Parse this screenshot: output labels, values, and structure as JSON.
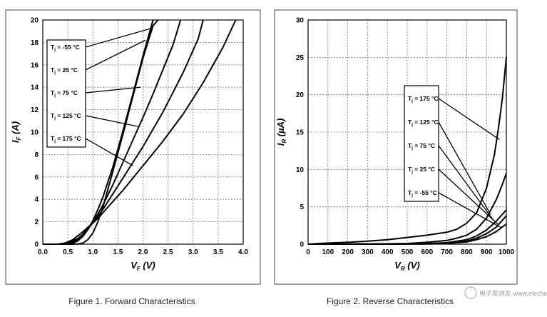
{
  "charts": [
    {
      "caption": "Figure 1. Forward Characteristics",
      "chart_data": {
        "type": "line",
        "xlabel": "V",
        "xlabel_sub": "F",
        "xlabel_unit": "(V)",
        "ylabel": "I",
        "ylabel_sub": "F",
        "ylabel_unit": "(A)",
        "xlim": [
          0,
          4
        ],
        "ylim": [
          0,
          20
        ],
        "xticks": [
          "0.0",
          "0.5",
          "1.0",
          "1.5",
          "2.0",
          "2.5",
          "3.0",
          "3.5",
          "4.0"
        ],
        "yticks": [
          "0",
          "2",
          "4",
          "6",
          "8",
          "10",
          "12",
          "14",
          "16",
          "18",
          "20"
        ],
        "grid": true,
        "series": [
          {
            "name": "Tj = -55 °C",
            "x": [
              0,
              0.5,
              0.7,
              0.8,
              0.9,
              1.0,
              1.1,
              1.2,
              1.4,
              1.6,
              1.8,
              2.0,
              2.2,
              2.3
            ],
            "y": [
              0,
              0,
              0.02,
              0.1,
              0.4,
              1.0,
              2.0,
              3.3,
              6.5,
              9.8,
              13.2,
              16.6,
              19.5,
              20
            ]
          },
          {
            "name": "Tj = 25 °C",
            "x": [
              0,
              0.4,
              0.6,
              0.7,
              0.8,
              0.9,
              1.0,
              1.1,
              1.2,
              1.4,
              1.6,
              1.8,
              2.0,
              2.2
            ],
            "y": [
              0,
              0,
              0.1,
              0.3,
              0.7,
              1.3,
              2.1,
              3.1,
              4.2,
              6.9,
              10.1,
              13.4,
              16.8,
              20
            ]
          },
          {
            "name": "Tj = 75 °C",
            "x": [
              0,
              0.4,
              0.55,
              0.7,
              0.8,
              0.9,
              1.0,
              1.1,
              1.2,
              1.4,
              1.6,
              1.8,
              2.0,
              2.2,
              2.4,
              2.6,
              2.75
            ],
            "y": [
              0,
              0,
              0.08,
              0.4,
              0.8,
              1.3,
              2.0,
              2.7,
              3.5,
              5.3,
              7.3,
              9.3,
              11.3,
              13.4,
              15.6,
              17.8,
              20
            ]
          },
          {
            "name": "Tj = 125 °C",
            "x": [
              0,
              0.35,
              0.5,
              0.7,
              0.8,
              0.9,
              1.0,
              1.1,
              1.2,
              1.4,
              1.6,
              1.8,
              2.0,
              2.4,
              2.8,
              3.1,
              3.2
            ],
            "y": [
              0,
              0,
              0.1,
              0.5,
              0.9,
              1.4,
              1.9,
              2.5,
              3.1,
              4.5,
              5.9,
              7.3,
              8.7,
              11.8,
              15.3,
              18.3,
              20
            ]
          },
          {
            "name": "Tj = 175 °C",
            "x": [
              0,
              0.3,
              0.45,
              0.6,
              0.8,
              0.9,
              1.0,
              1.1,
              1.2,
              1.4,
              1.6,
              1.8,
              2.0,
              2.4,
              2.8,
              3.2,
              3.6,
              3.85
            ],
            "y": [
              0,
              0,
              0.1,
              0.4,
              1.1,
              1.5,
              1.9,
              2.3,
              2.8,
              3.8,
              4.8,
              5.9,
              7.0,
              9.2,
              11.6,
              14.4,
              17.6,
              20
            ]
          }
        ]
      }
    },
    {
      "caption": "Figure 2. Reverse Characteristics",
      "chart_data": {
        "type": "line",
        "xlabel": "V",
        "xlabel_sub": "R",
        "xlabel_unit": "(V)",
        "ylabel": "I",
        "ylabel_sub": "R",
        "ylabel_unit": "(µA)",
        "xlim": [
          0,
          1000
        ],
        "ylim": [
          0,
          30
        ],
        "xticks": [
          "0",
          "100",
          "200",
          "300",
          "400",
          "500",
          "600",
          "700",
          "800",
          "900",
          "1000"
        ],
        "yticks": [
          "0",
          "5",
          "10",
          "15",
          "20",
          "25",
          "30"
        ],
        "grid": true,
        "series": [
          {
            "name": "Tj = 175 °C",
            "x": [
              0,
              100,
              200,
              300,
              400,
              500,
              600,
              700,
              750,
              800,
              850,
              900,
              940,
              960,
              980,
              1000
            ],
            "y": [
              0,
              0.15,
              0.25,
              0.4,
              0.6,
              0.9,
              1.2,
              1.6,
              2.0,
              2.8,
              4.2,
              7.5,
              12.0,
              15.5,
              19.5,
              25
            ]
          },
          {
            "name": "Tj = 125 °C",
            "x": [
              0,
              200,
              400,
              500,
              600,
              700,
              750,
              800,
              850,
              900,
              950,
              980,
              1000
            ],
            "y": [
              0,
              0.02,
              0.05,
              0.1,
              0.25,
              0.5,
              0.8,
              1.2,
              2.0,
              3.5,
              6.0,
              8.0,
              9.5
            ]
          },
          {
            "name": "Tj = 75 °C",
            "x": [
              0,
              400,
              600,
              700,
              800,
              850,
              900,
              950,
              1000
            ],
            "y": [
              0,
              0.02,
              0.08,
              0.2,
              0.6,
              1.1,
              1.9,
              3.1,
              4.6
            ]
          },
          {
            "name": "Tj = 25 °C",
            "x": [
              0,
              400,
              600,
              700,
              800,
              850,
              900,
              950,
              1000
            ],
            "y": [
              0,
              0.01,
              0.05,
              0.15,
              0.4,
              0.8,
              1.4,
              2.3,
              3.8
            ]
          },
          {
            "name": "Tj = -55 °C",
            "x": [
              0,
              400,
              600,
              700,
              800,
              850,
              900,
              950,
              1000
            ],
            "y": [
              0,
              0.01,
              0.03,
              0.1,
              0.3,
              0.6,
              1.0,
              1.7,
              2.7
            ]
          }
        ]
      }
    }
  ],
  "watermark": "电子发烧友 www.elecfans.com"
}
